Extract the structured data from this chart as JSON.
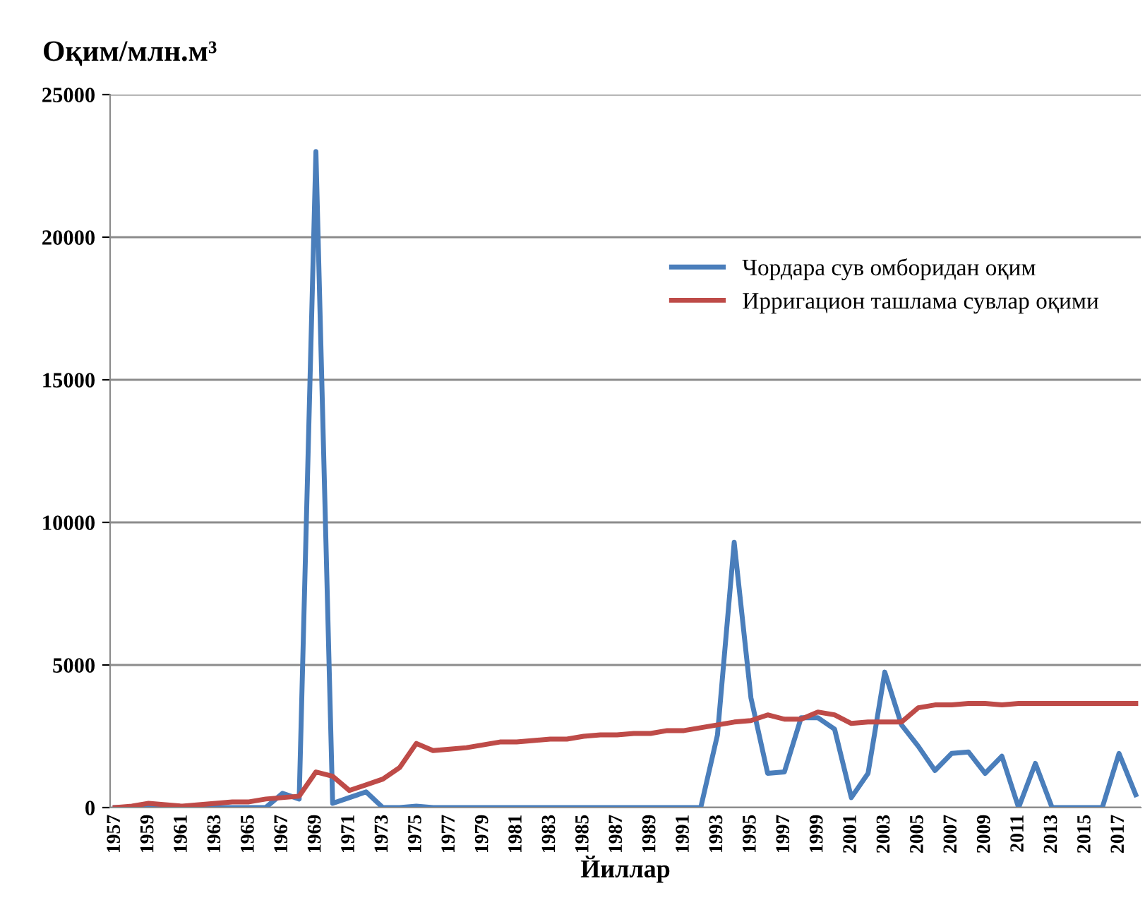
{
  "chart_data": {
    "type": "line",
    "title": "Оқим/млн.м³",
    "xlabel": "Йиллар",
    "categories": [
      "1957",
      null,
      "1959",
      null,
      "1961",
      null,
      "1963",
      null,
      "1965",
      null,
      "1967",
      null,
      "1969",
      null,
      "1971",
      null,
      "1973",
      null,
      "1975",
      null,
      "1977",
      null,
      "1979",
      null,
      "1981",
      null,
      "1983",
      null,
      "1985",
      null,
      "1987",
      null,
      "1989",
      null,
      "1991",
      null,
      "1993",
      null,
      "1995",
      null,
      "1997",
      null,
      "1999",
      null,
      "2001",
      null,
      "2003",
      null,
      "2005",
      null,
      "2007",
      null,
      "2009",
      null,
      "2011",
      null,
      "2013",
      null,
      "2015",
      null,
      "2017",
      null
    ],
    "series": [
      {
        "name": "Чордара сув омборидан оқим",
        "color": "#4a7ebb",
        "values": [
          0,
          0,
          0,
          0,
          0,
          0,
          0,
          0,
          0,
          0,
          500,
          300,
          23000,
          150,
          350,
          550,
          0,
          0,
          50,
          0,
          0,
          0,
          0,
          0,
          0,
          0,
          0,
          0,
          0,
          0,
          0,
          0,
          0,
          0,
          0,
          0,
          2550,
          9300,
          3850,
          1200,
          1250,
          3150,
          3150,
          2750,
          350,
          1200,
          4750,
          2900,
          2150,
          1300,
          1900,
          1950,
          1200,
          1800,
          0,
          1550,
          0,
          0,
          0,
          0,
          1900,
          450
        ]
      },
      {
        "name": "Ирригацион ташлама сувлар оқими",
        "color": "#be4b48",
        "values": [
          0,
          50,
          150,
          100,
          50,
          100,
          150,
          200,
          200,
          300,
          350,
          400,
          1250,
          1100,
          600,
          800,
          1000,
          1400,
          2250,
          2000,
          2050,
          2100,
          2200,
          2300,
          2300,
          2350,
          2400,
          2400,
          2500,
          2550,
          2550,
          2600,
          2600,
          2700,
          2700,
          2800,
          2900,
          3000,
          3050,
          3250,
          3100,
          3100,
          3350,
          3250,
          2950,
          3000,
          3000,
          3000,
          3500,
          3600,
          3600,
          3650,
          3650,
          3600,
          3650,
          3650,
          3650,
          3650,
          3650,
          3650,
          3650,
          3650
        ]
      }
    ],
    "ylim": [
      0,
      25000
    ],
    "yticks": [
      0,
      5000,
      10000,
      15000,
      20000,
      25000
    ],
    "grid": "y",
    "legend": "top right",
    "marker": "none",
    "line_style": "solid"
  }
}
